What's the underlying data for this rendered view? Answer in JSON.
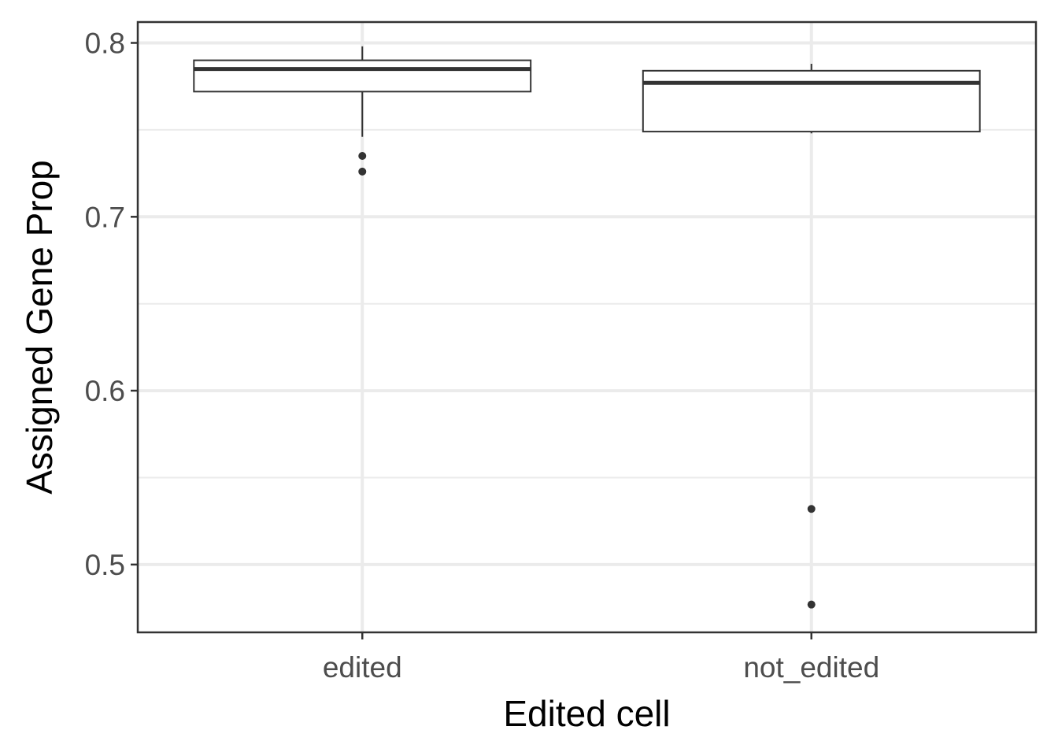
{
  "chart_data": {
    "type": "boxplot",
    "title": "",
    "xlabel": "Edited cell",
    "ylabel": "Assigned Gene Prop",
    "ylim": [
      0.461,
      0.812
    ],
    "y_ticks": [
      0.5,
      0.6,
      0.7,
      0.8
    ],
    "y_tick_labels": [
      "0.5",
      "0.6",
      "0.7",
      "0.8"
    ],
    "grid": true,
    "legend": "none",
    "categories": [
      "edited",
      "not_edited"
    ],
    "boxes": [
      {
        "category": "edited",
        "whisker_low": 0.746,
        "q1": 0.772,
        "median": 0.785,
        "q3": 0.79,
        "whisker_high": 0.798,
        "outliers": [
          0.735,
          0.726
        ]
      },
      {
        "category": "not_edited",
        "whisker_low": 0.748,
        "q1": 0.749,
        "median": 0.777,
        "q3": 0.784,
        "whisker_high": 0.788,
        "outliers": [
          0.532,
          0.477
        ]
      }
    ],
    "colors": {
      "box_fill": "#ffffff",
      "box_line": "#333333",
      "grid": "#ebebeb",
      "panel_border": "#333333",
      "point": "#333333"
    }
  }
}
